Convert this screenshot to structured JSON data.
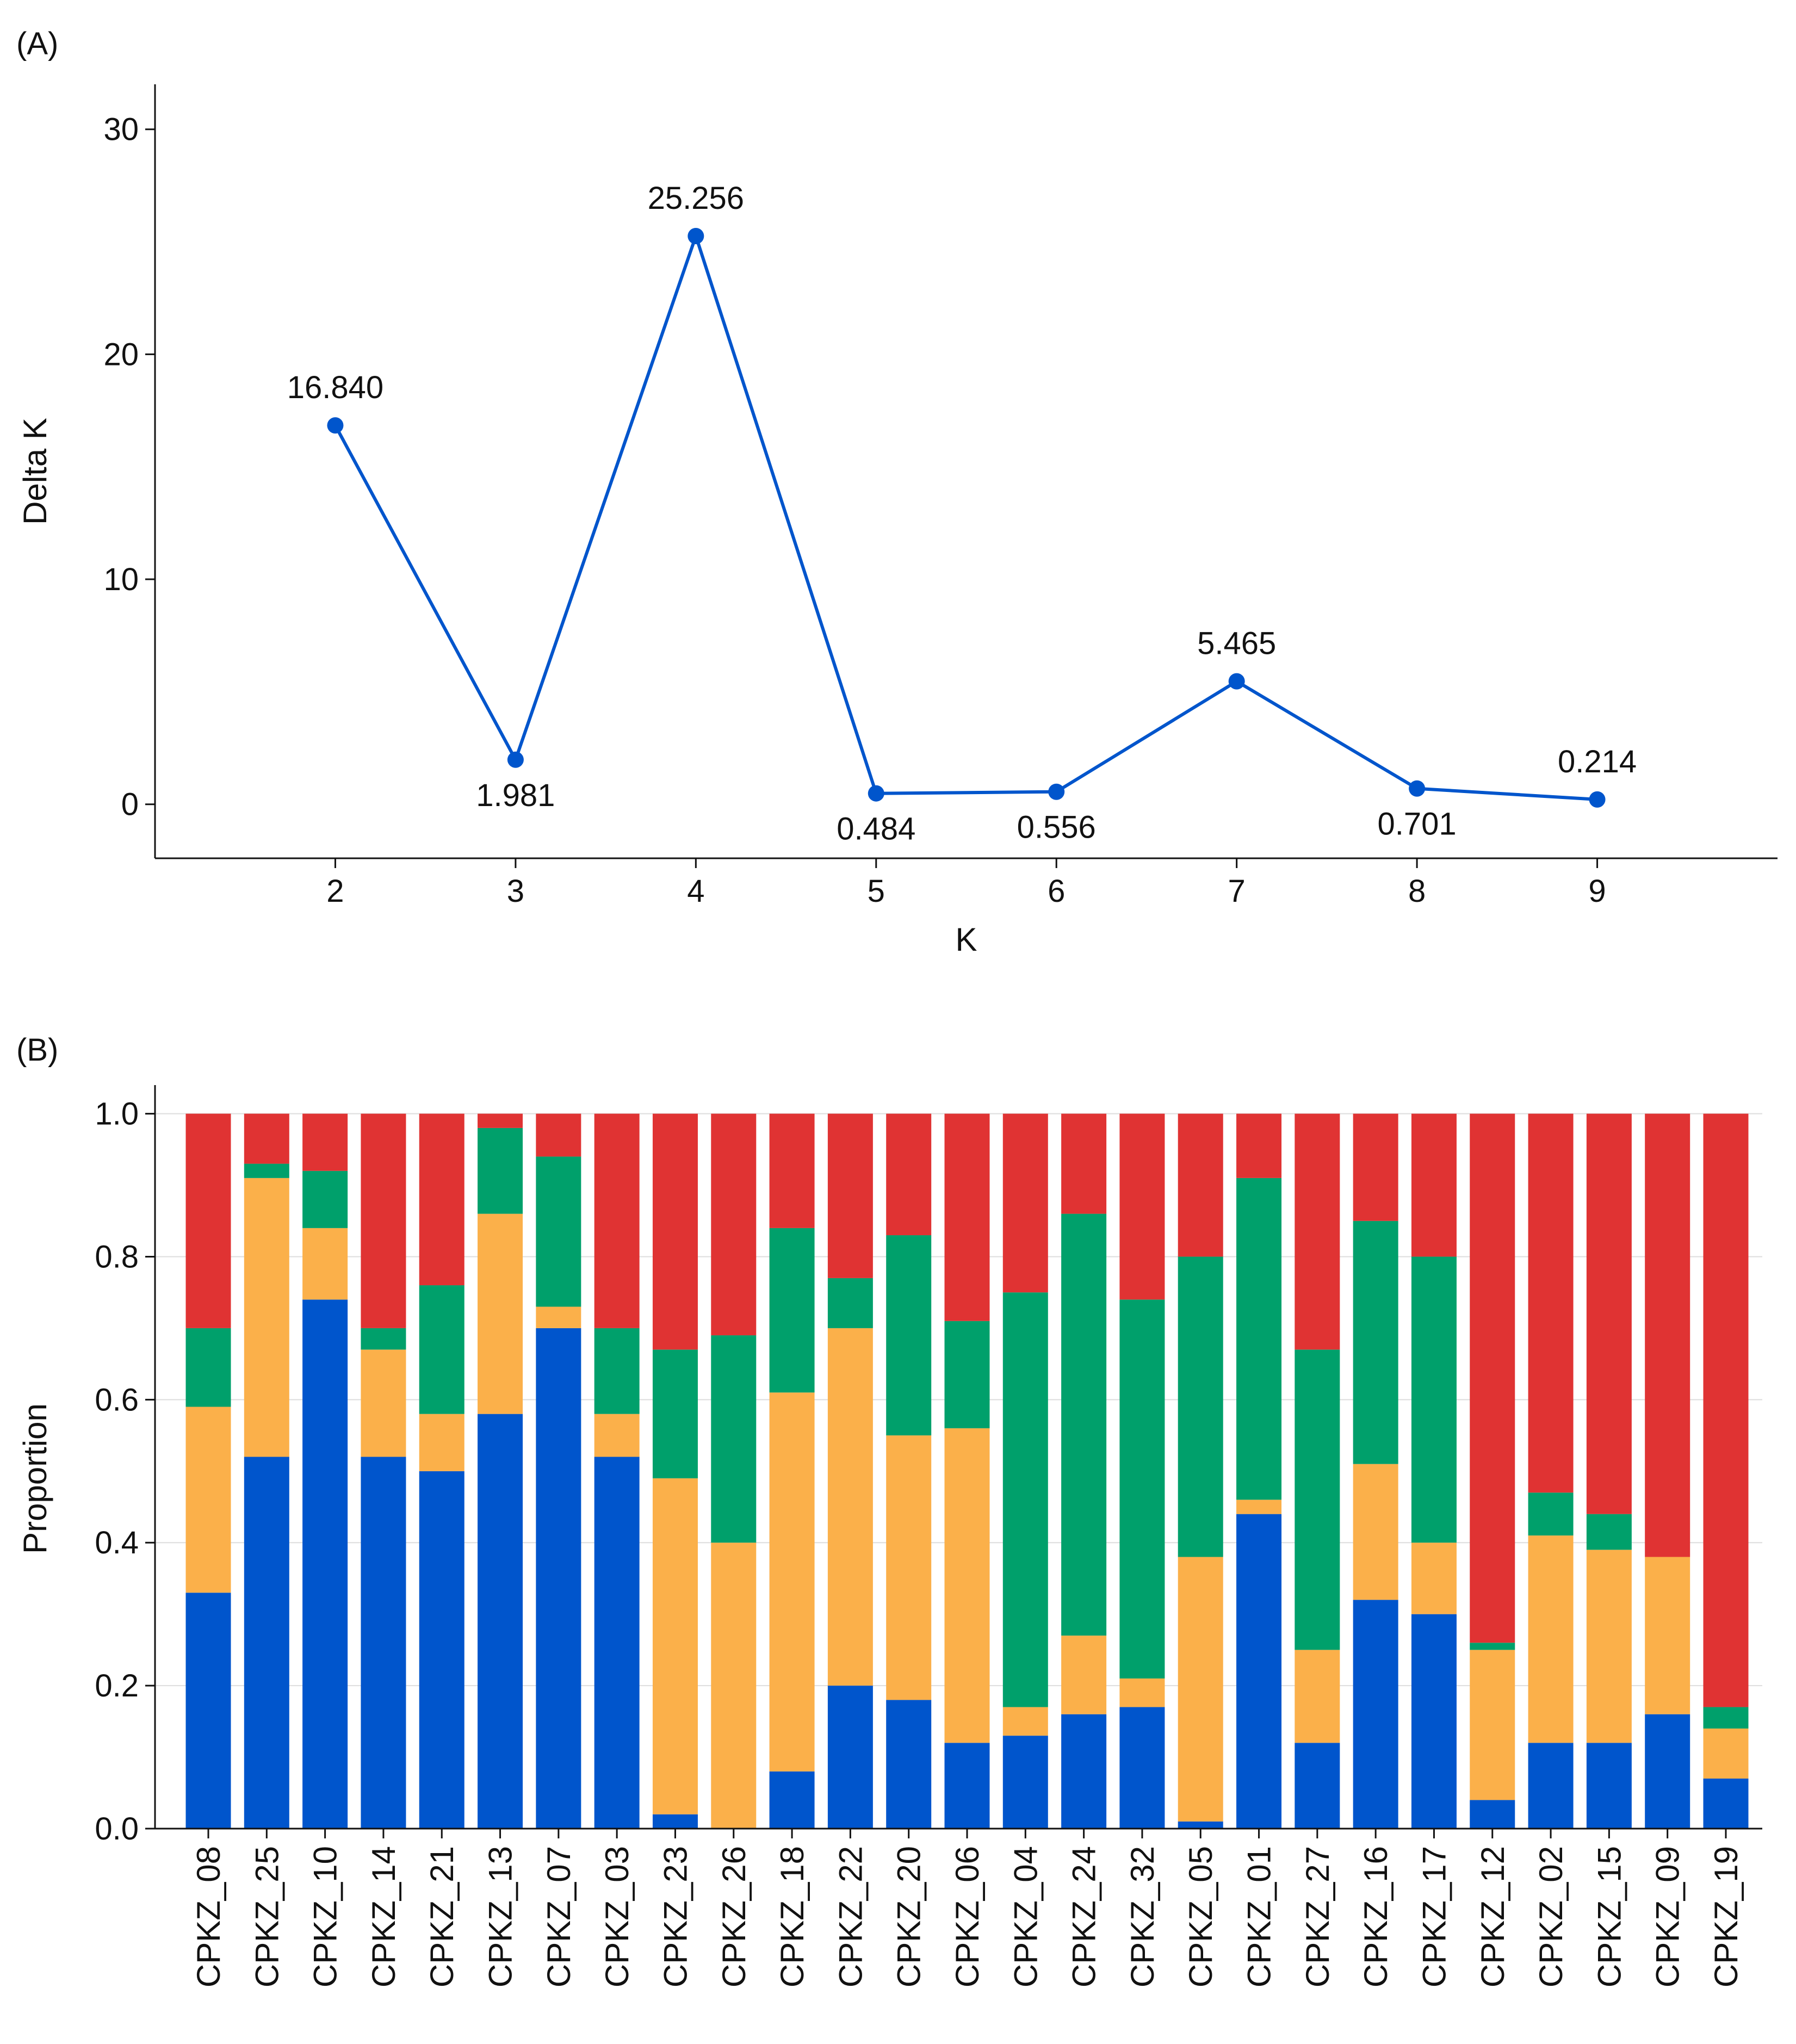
{
  "panel_labels": {
    "a": "(A)",
    "b": "(B)"
  },
  "chart_data": [
    {
      "type": "line",
      "panel": "(A)",
      "xlabel": "K",
      "ylabel": "Delta K",
      "x": [
        2,
        3,
        4,
        5,
        6,
        7,
        8,
        9
      ],
      "y": [
        16.84,
        1.981,
        25.256,
        0.484,
        0.556,
        5.465,
        0.701,
        0.214
      ],
      "point_labels": [
        "16.840",
        "1.981",
        "25.256",
        "0.484",
        "0.556",
        "5.465",
        "0.701",
        "0.214"
      ],
      "x_ticks": [
        "2",
        "3",
        "4",
        "5",
        "6",
        "7",
        "8",
        "9"
      ],
      "y_ticks": [
        "0",
        "10",
        "20",
        "30"
      ],
      "ylim": [
        -2.4,
        32
      ],
      "xlim": [
        1,
        10
      ],
      "color": "#0055cc",
      "grid": false
    },
    {
      "type": "bar",
      "stacked": true,
      "panel": "(B)",
      "xlabel": "",
      "ylabel": "Proportion",
      "ylim": [
        0,
        1.04
      ],
      "y_ticks": [
        "0.0",
        "0.2",
        "0.4",
        "0.6",
        "0.8",
        "1.0"
      ],
      "grid": true,
      "categories": [
        "CPKZ_08",
        "CPKZ_25",
        "CPKZ_10",
        "CPKZ_14",
        "CPKZ_21",
        "CPKZ_13",
        "CPKZ_07",
        "CPKZ_03",
        "CPKZ_23",
        "CPKZ_26",
        "CPKZ_18",
        "CPKZ_22",
        "CPKZ_20",
        "CPKZ_06",
        "CPKZ_04",
        "CPKZ_24",
        "CPKZ_32",
        "CPKZ_05",
        "CPKZ_01",
        "CPKZ_27",
        "CPKZ_16",
        "CPKZ_17",
        "CPKZ_12",
        "CPKZ_02",
        "CPKZ_15",
        "CPKZ_09",
        "CPKZ_19"
      ],
      "series": [
        {
          "color": "#0055cc",
          "values": [
            0.33,
            0.52,
            0.74,
            0.52,
            0.5,
            0.58,
            0.7,
            0.52,
            0.02,
            0.0,
            0.08,
            0.2,
            0.18,
            0.12,
            0.13,
            0.16,
            0.17,
            0.01,
            0.44,
            0.12,
            0.32,
            0.3,
            0.04,
            0.12,
            0.12,
            0.16,
            0.07
          ]
        },
        {
          "color": "#fbb04a",
          "values": [
            0.26,
            0.39,
            0.1,
            0.15,
            0.08,
            0.28,
            0.03,
            0.06,
            0.47,
            0.4,
            0.53,
            0.5,
            0.37,
            0.44,
            0.04,
            0.11,
            0.04,
            0.37,
            0.02,
            0.13,
            0.19,
            0.1,
            0.21,
            0.29,
            0.27,
            0.22,
            0.07
          ]
        },
        {
          "color": "#00a06b",
          "values": [
            0.11,
            0.02,
            0.08,
            0.03,
            0.18,
            0.12,
            0.21,
            0.12,
            0.18,
            0.29,
            0.23,
            0.07,
            0.28,
            0.15,
            0.58,
            0.59,
            0.53,
            0.42,
            0.45,
            0.42,
            0.34,
            0.4,
            0.01,
            0.06,
            0.05,
            0.0,
            0.03
          ]
        },
        {
          "color": "#e03333",
          "values": [
            0.3,
            0.07,
            0.08,
            0.3,
            0.24,
            0.02,
            0.06,
            0.3,
            0.33,
            0.31,
            0.16,
            0.23,
            0.17,
            0.29,
            0.25,
            0.14,
            0.26,
            0.2,
            0.09,
            0.33,
            0.15,
            0.2,
            0.74,
            0.53,
            0.56,
            0.62,
            0.83
          ]
        }
      ]
    }
  ]
}
